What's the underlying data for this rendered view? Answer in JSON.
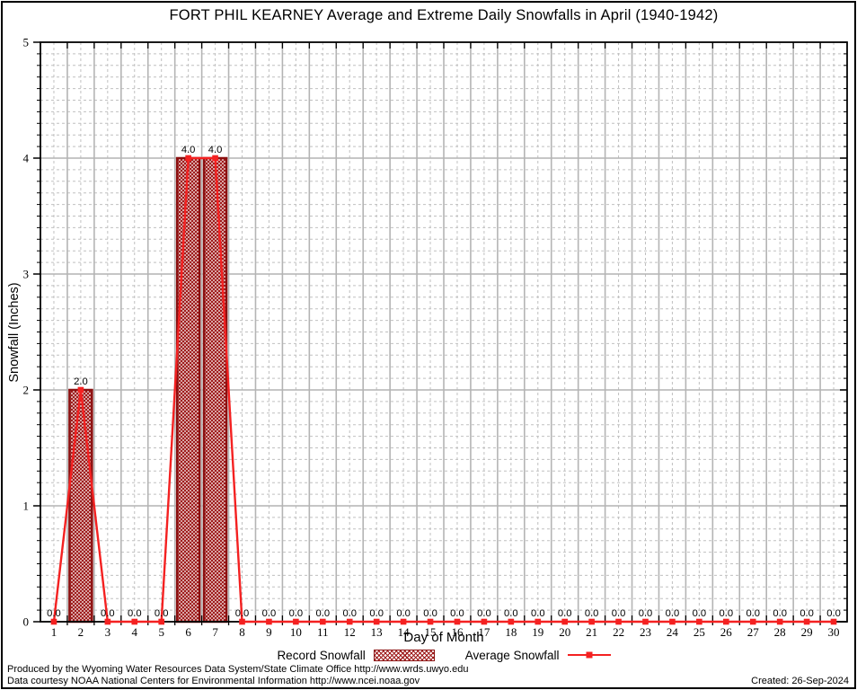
{
  "title": "FORT PHIL KEARNEY Average and Extreme Daily Snowfalls in April (1940-1942)",
  "legend": {
    "record_label": "Record Snowfall",
    "average_label": "Average Snowfall"
  },
  "footer": {
    "line1": "Produced by the Wyoming Water Resources Data System/State Climate Office http://www.wrds.uwyo.edu",
    "line2": "Data courtesy NOAA National Centers for Environmental Information http://www.ncei.noaa.gov",
    "created": "Created: 26-Sep-2024"
  },
  "colors": {
    "bar_border": "#8b1010",
    "bar_hatch": "#9e1a1a",
    "line": "#f42121",
    "grid_major": "#b4b4b4",
    "grid_minor": "#c0c0c0",
    "frame": "#000000",
    "text": "#000000"
  },
  "chart_data": {
    "type": "bar",
    "title": "FORT PHIL KEARNEY Average and Extreme Daily Snowfalls in April (1940-1942)",
    "xlabel": "Day of Month",
    "ylabel": "Snowfall (Inches)",
    "days": [
      1,
      2,
      3,
      4,
      5,
      6,
      7,
      8,
      9,
      10,
      11,
      12,
      13,
      14,
      15,
      16,
      17,
      18,
      19,
      20,
      21,
      22,
      23,
      24,
      25,
      26,
      27,
      28,
      29,
      30
    ],
    "series": [
      {
        "name": "Record Snowfall",
        "type": "bar",
        "values": [
          0.0,
          2.0,
          0.0,
          0.0,
          0.0,
          4.0,
          4.0,
          0.0,
          0.0,
          0.0,
          0.0,
          0.0,
          0.0,
          0.0,
          0.0,
          0.0,
          0.0,
          0.0,
          0.0,
          0.0,
          0.0,
          0.0,
          0.0,
          0.0,
          0.0,
          0.0,
          0.0,
          0.0,
          0.0,
          0.0
        ]
      },
      {
        "name": "Average Snowfall",
        "type": "line",
        "values": [
          0.0,
          2.0,
          0.0,
          0.0,
          0.0,
          4.0,
          4.0,
          0.0,
          0.0,
          0.0,
          0.0,
          0.0,
          0.0,
          0.0,
          0.0,
          0.0,
          0.0,
          0.0,
          0.0,
          0.0,
          0.0,
          0.0,
          0.0,
          0.0,
          0.0,
          0.0,
          0.0,
          0.0,
          0.0,
          0.0
        ]
      }
    ],
    "point_labels": [
      "0.0",
      "2.0",
      "0.0",
      "0.0",
      "0.0",
      "4.0",
      "4.0",
      "0.0",
      "0.0",
      "0.0",
      "0.0",
      "0.0",
      "0.0",
      "0.0",
      "0.0",
      "0.0",
      "0.0",
      "0.0",
      "0.0",
      "0.0",
      "0.0",
      "0.0",
      "0.0",
      "0.0",
      "0.0",
      "0.0",
      "0.0",
      "0.0",
      "0.0",
      "0.0"
    ],
    "ylim": [
      0,
      5
    ],
    "y_major_step": 1,
    "y_minor_step": 0.1,
    "y_tick_labels": [
      "0",
      "1",
      "2",
      "3",
      "4",
      "5"
    ],
    "grid": true,
    "legend_position": "bottom"
  }
}
